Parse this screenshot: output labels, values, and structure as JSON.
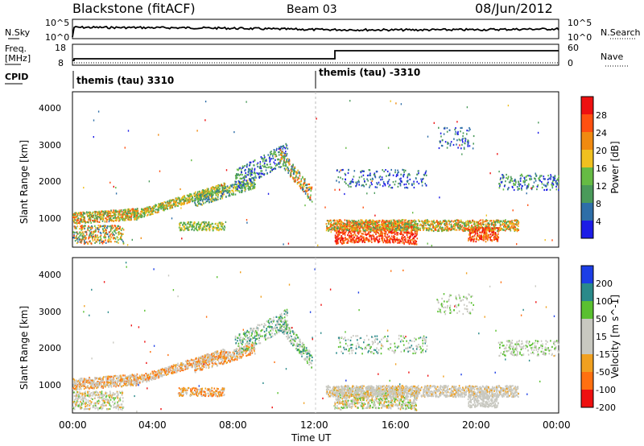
{
  "header": {
    "title": "Blackstone (fitACF)",
    "beam": "Beam 03",
    "date": "08/Jun/2012"
  },
  "top_panels": {
    "nsky_label": "N.Sky",
    "nsearch_label": "N.Search",
    "nsky_ticks": [
      "10^5",
      "10^0"
    ],
    "nsearch_ticks": [
      "10^5",
      "10^0"
    ],
    "freq_label_1": "Freq.",
    "freq_label_2": "[MHz]",
    "freq_ticks": [
      "18",
      "8"
    ],
    "nave_label": "Nave",
    "nave_ticks": [
      "60",
      "0"
    ],
    "cpid_label": "CPID",
    "cpid_segments": [
      {
        "label": "themis (tau) 3310",
        "start_hour": 0
      },
      {
        "label": "themis (tau) -3310",
        "start_hour": 12
      }
    ]
  },
  "colors": {
    "noise_line": "#000000",
    "scatter_colors_power": [
      "#1c1ce6",
      "#2e6ea8",
      "#4a9a5a",
      "#66bb44",
      "#f0c020",
      "#f08a10",
      "#ff5010",
      "#ee1010"
    ],
    "scatter_colors_velocity": [
      "#1c3ee6",
      "#2a8a8a",
      "#5ac030",
      "#c8c8c0",
      "#f0a020",
      "#ff7010",
      "#ee1010"
    ]
  },
  "chart_data": [
    {
      "type": "line",
      "panel": "noise",
      "series": [
        {
          "name": "N.Sky",
          "x": [
            0,
            2,
            4,
            6,
            8,
            10,
            12,
            14,
            16,
            18,
            20,
            22,
            24
          ],
          "y": [
            1000,
            900,
            800,
            700,
            500,
            300,
            200,
            180,
            160,
            170,
            190,
            260,
            320
          ]
        }
      ],
      "ylabel": "N.Sky",
      "ticks": [
        "10^5",
        "10^0"
      ]
    },
    {
      "type": "line",
      "panel": "frequency",
      "series": [
        {
          "name": "Freq.",
          "x": [
            0,
            0.1,
            13,
            13.05,
            24
          ],
          "y": [
            10,
            10,
            10,
            16.5,
            16.5
          ]
        }
      ],
      "ylabel": "Freq. [MHz]",
      "ylim": [
        8,
        18
      ],
      "yticks": [
        8,
        18
      ]
    },
    {
      "type": "heatmap",
      "panel": "power",
      "ylabel": "Slant Range [km]",
      "yticks": [
        1000,
        2000,
        3000,
        4000
      ],
      "ylim": [
        180,
        4600
      ],
      "xlim": [
        0,
        24
      ],
      "colorbar": {
        "label": "Power [dB]",
        "ticks": [
          "4",
          "8",
          "12",
          "16",
          "20",
          "24",
          "28"
        ]
      }
    },
    {
      "type": "heatmap",
      "panel": "velocity",
      "ylabel": "Slant Range [km]",
      "xlabel": "Time UT",
      "xticks": [
        "00:00",
        "04:00",
        "08:00",
        "12:00",
        "16:00",
        "20:00",
        "00:00"
      ],
      "yticks": [
        1000,
        2000,
        3000,
        4000
      ],
      "ylim": [
        180,
        4600
      ],
      "xlim": [
        0,
        24
      ],
      "colorbar": {
        "label": "Velocity [m s^-1]",
        "ticks": [
          "200",
          "100",
          "50",
          "15",
          "-15",
          "-50",
          "-100",
          "-200"
        ]
      }
    }
  ]
}
